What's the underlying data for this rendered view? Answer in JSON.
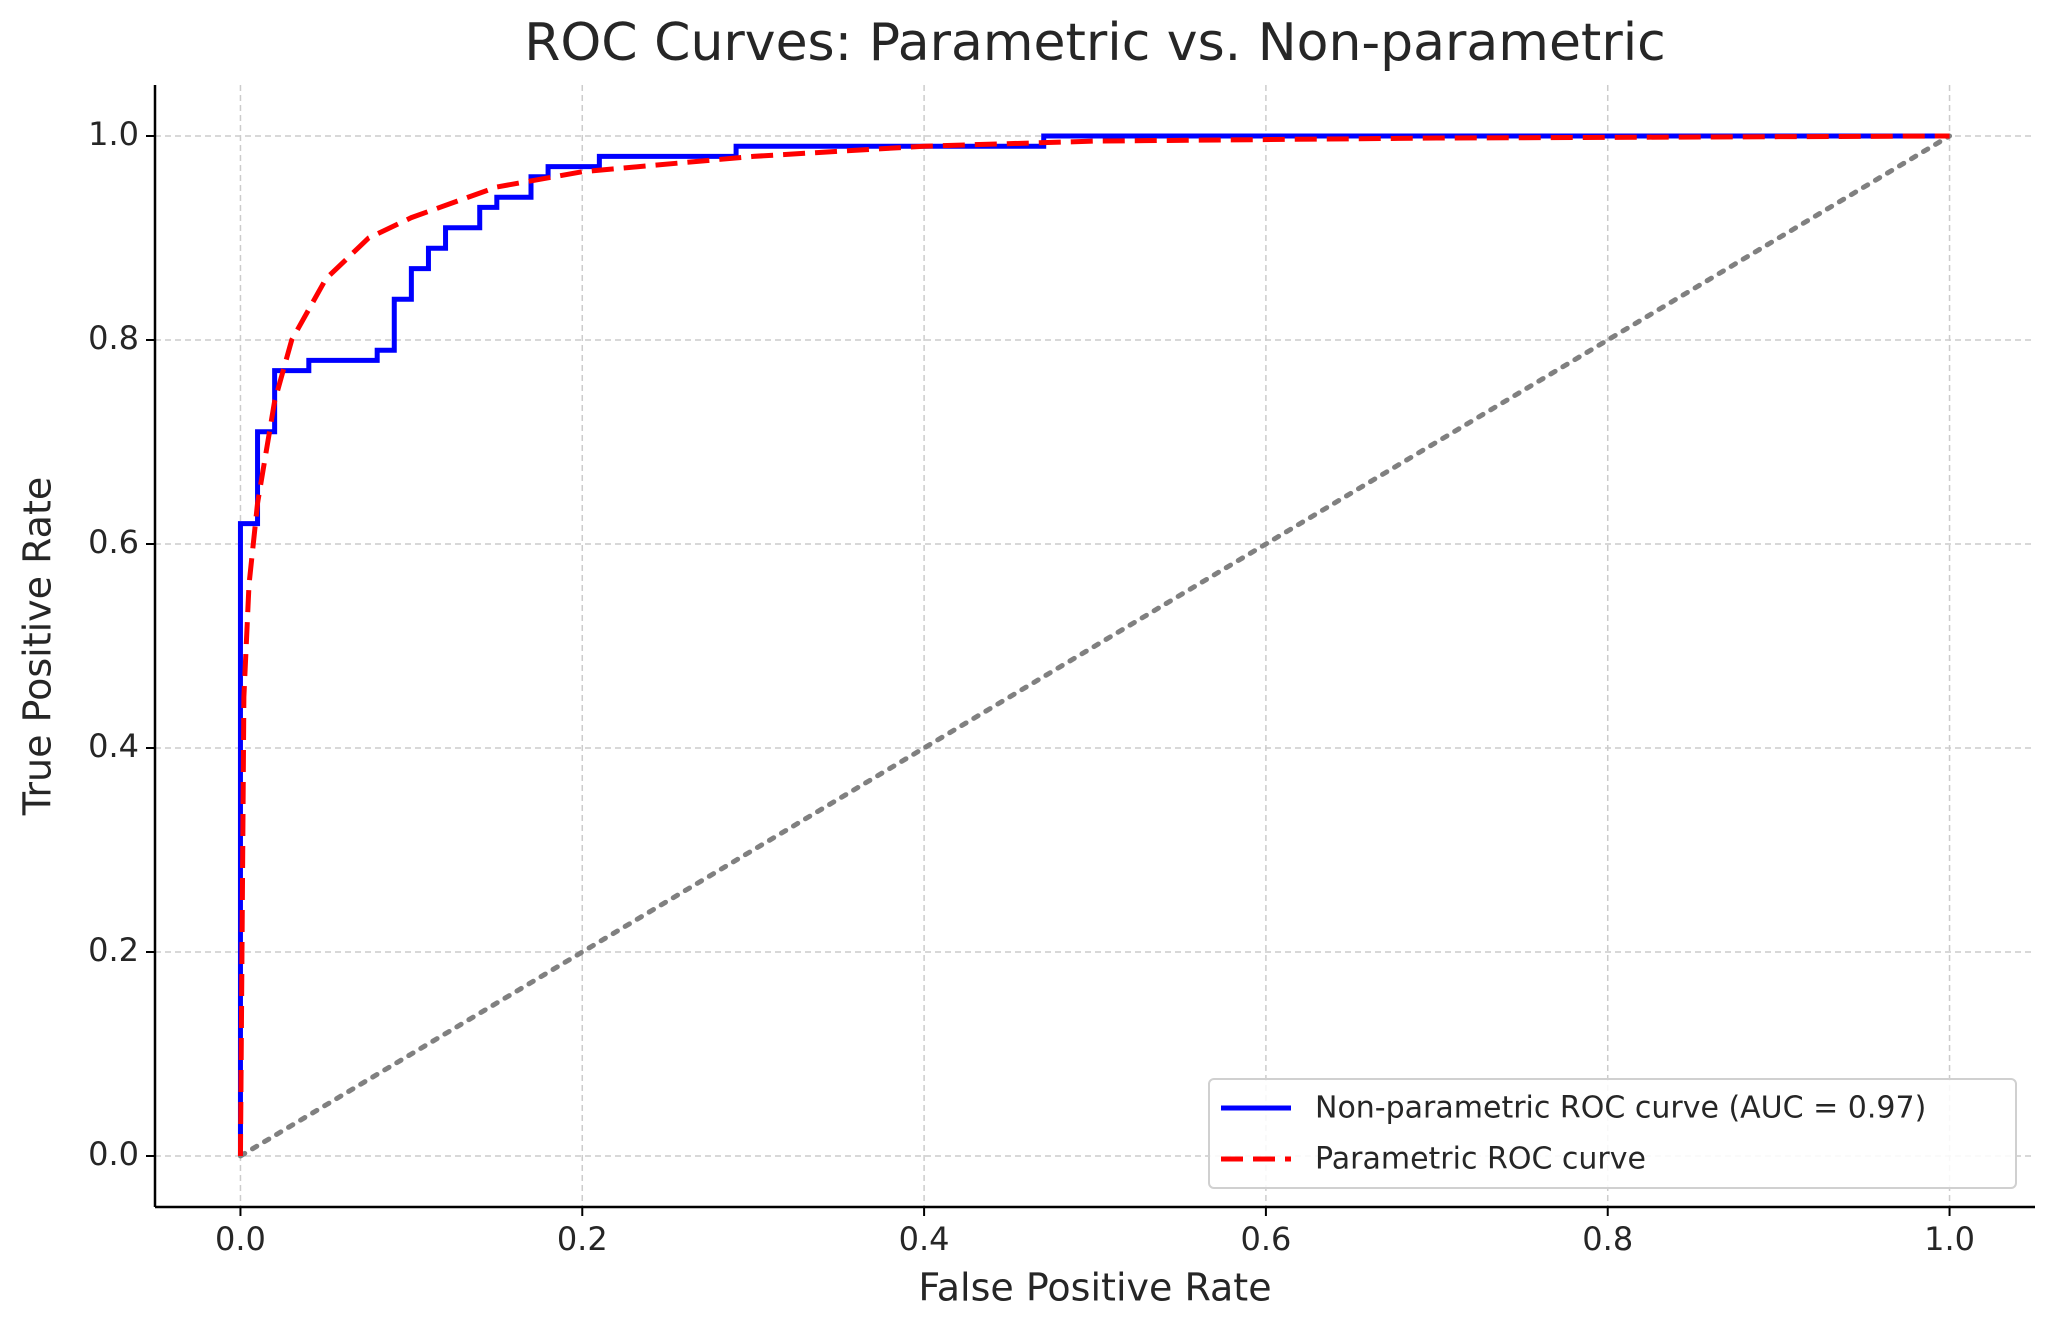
{
  "chart_data": {
    "type": "line",
    "title": "ROC Curves: Parametric vs. Non-parametric",
    "x_label": "False Positive Rate",
    "y_label": "True Positive Rate",
    "xlim": [
      -0.05,
      1.05
    ],
    "ylim": [
      -0.05,
      1.05
    ],
    "xticks": [
      {
        "value": 0,
        "label": "0.0"
      },
      {
        "value": 0.2,
        "label": "0.2"
      },
      {
        "value": 0.4,
        "label": "0.4"
      },
      {
        "value": 0.6,
        "label": "0.6"
      },
      {
        "value": 0.8,
        "label": "0.8"
      },
      {
        "value": 1,
        "label": "1.0"
      }
    ],
    "yticks": [
      {
        "value": 0,
        "label": "0.0"
      },
      {
        "value": 0.2,
        "label": "0.2"
      },
      {
        "value": 0.4,
        "label": "0.4"
      },
      {
        "value": 0.6,
        "label": "0.6"
      },
      {
        "value": 0.8,
        "label": "0.8"
      },
      {
        "value": 1,
        "label": "1.0"
      }
    ],
    "grid": true,
    "legend_loc": "lower right",
    "series": [
      {
        "name": "Non-parametric ROC curve (AUC = 0.97)",
        "color": "#0000ff",
        "style": "solid",
        "x": [
          0,
          0,
          0.01,
          0.01,
          0.02,
          0.02,
          0.04,
          0.04,
          0.08,
          0.08,
          0.09,
          0.09,
          0.1,
          0.1,
          0.11,
          0.11,
          0.12,
          0.12,
          0.14,
          0.14,
          0.15,
          0.15,
          0.17,
          0.17,
          0.18,
          0.18,
          0.21,
          0.21,
          0.29,
          0.29,
          0.47,
          0.47,
          1
        ],
        "values": [
          0,
          0.62,
          0.62,
          0.71,
          0.71,
          0.77,
          0.77,
          0.78,
          0.78,
          0.79,
          0.79,
          0.84,
          0.84,
          0.87,
          0.87,
          0.89,
          0.89,
          0.91,
          0.91,
          0.93,
          0.93,
          0.94,
          0.94,
          0.96,
          0.96,
          0.97,
          0.97,
          0.98,
          0.98,
          0.99,
          0.99,
          1,
          1
        ]
      },
      {
        "name": "Parametric ROC curve",
        "color": "#ff0000",
        "style": "dashed",
        "x": [
          0,
          0.002,
          0.005,
          0.01,
          0.02,
          0.03,
          0.05,
          0.075,
          0.1,
          0.15,
          0.2,
          0.3,
          0.4,
          0.5,
          0.7,
          1
        ],
        "values": [
          0,
          0.45,
          0.56,
          0.64,
          0.74,
          0.8,
          0.86,
          0.9,
          0.92,
          0.95,
          0.965,
          0.98,
          0.99,
          0.995,
          0.998,
          1
        ]
      }
    ],
    "reference_line": {
      "color": "#808080",
      "style": "dotted",
      "x": [
        0,
        1
      ],
      "values": [
        0,
        1
      ]
    }
  }
}
